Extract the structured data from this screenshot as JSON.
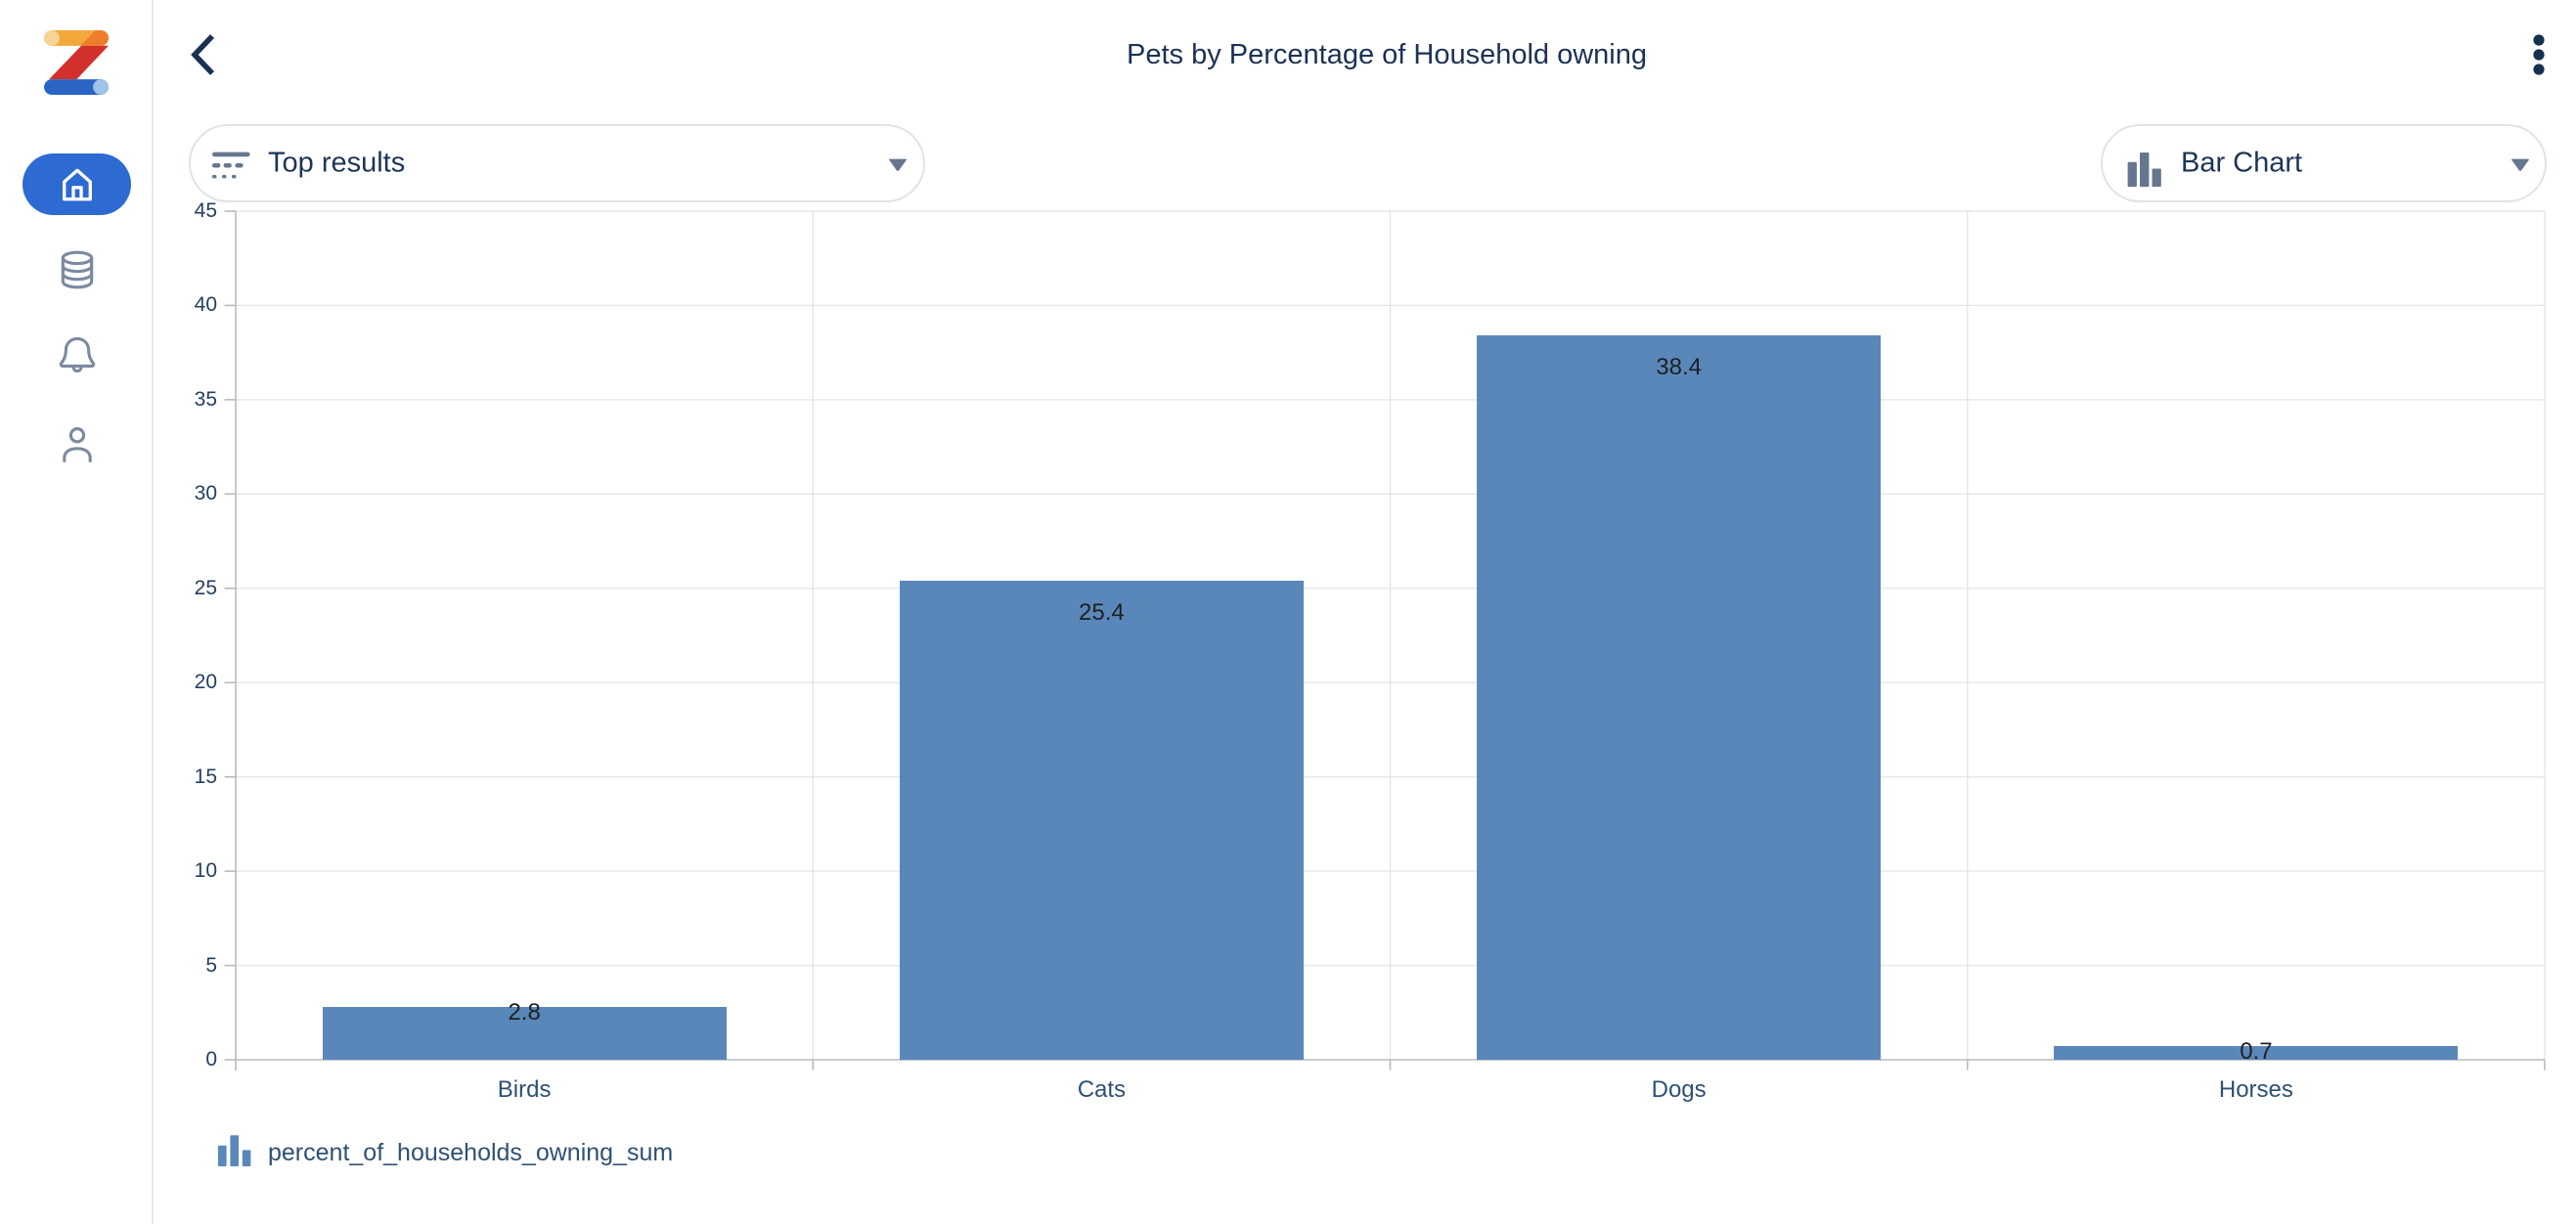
{
  "header": {
    "title": "Pets by Percentage of Household owning"
  },
  "sidebar": {
    "items": [
      {
        "icon": "home-icon",
        "active": true
      },
      {
        "icon": "database-icon",
        "active": false
      },
      {
        "icon": "bell-icon",
        "active": false
      },
      {
        "icon": "person-icon",
        "active": false
      }
    ]
  },
  "toolbar": {
    "results_dropdown": {
      "label": "Top results",
      "icon": "top-results-icon"
    },
    "chart_type_dropdown": {
      "label": "Bar Chart",
      "icon": "bar-chart-icon"
    }
  },
  "chart_data": {
    "type": "bar",
    "categories": [
      "Birds",
      "Cats",
      "Dogs",
      "Horses"
    ],
    "values": [
      2.8,
      25.4,
      38.4,
      0.7
    ],
    "series_name": "percent_of_households_owning_sum",
    "ylim": [
      0,
      45
    ],
    "ytick_step": 5,
    "yticks": [
      0,
      5,
      10,
      15,
      20,
      25,
      30,
      35,
      40,
      45
    ],
    "grid": true,
    "legend_position": "bottom-left",
    "bar_color": "#5a87b9"
  },
  "legend": {
    "series_label": "percent_of_households_owning_sum"
  },
  "colors": {
    "accent_blue": "#2d6ad2",
    "bar_fill": "#5a87b9",
    "navy_text": "#1b3254",
    "slate_icon": "#64778e",
    "sidebar_icon": "#7b8aa0",
    "gridline": "#e4e6e9",
    "axis_line": "#b7babe"
  }
}
